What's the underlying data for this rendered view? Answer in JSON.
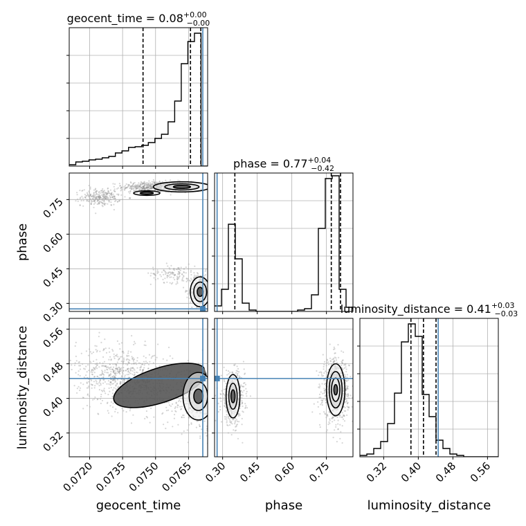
{
  "chart_data": {
    "type": "corner",
    "parameters": [
      "geocent_time",
      "phase",
      "luminosity_distance"
    ],
    "truth": {
      "geocent_time": 0.07715,
      "phase": 0.276,
      "luminosity_distance": 0.446
    },
    "axes": {
      "geocent_time": {
        "range": [
          0.07107,
          0.07737
        ],
        "ticks": [
          "0.0720",
          "0.0735",
          "0.0750",
          "0.0765"
        ],
        "tick_values": [
          0.072,
          0.0735,
          0.075,
          0.0765
        ]
      },
      "phase": {
        "range": [
          0.265,
          0.865
        ],
        "ticks": [
          "0.30",
          "0.45",
          "0.60",
          "0.75"
        ],
        "tick_values": [
          0.3,
          0.45,
          0.6,
          0.75
        ]
      },
      "luminosity_distance": {
        "range": [
          0.265,
          0.585
        ],
        "ticks": [
          "0.32",
          "0.40",
          "0.48",
          "0.56"
        ],
        "tick_values": [
          0.32,
          0.4,
          0.48,
          0.56
        ]
      }
    },
    "titles": [
      {
        "param": "geocent_time",
        "text": "geocent_time = 0.08",
        "plus": "+0.00",
        "minus": "−0.00",
        "quantiles": [
          0.07443,
          0.07659,
          0.07706
        ]
      },
      {
        "param": "phase",
        "text": "phase = 0.77",
        "plus": "+0.04",
        "minus": "−0.42",
        "quantiles": [
          0.353,
          0.771,
          0.811
        ]
      },
      {
        "param": "luminosity_distance",
        "text": "luminosity_distance = 0.41",
        "plus": "+0.03",
        "minus": "−0.03",
        "quantiles": [
          0.383,
          0.412,
          0.441
        ]
      }
    ],
    "histograms": {
      "geocent_time": [
        0.01,
        0.03,
        0.035,
        0.045,
        0.05,
        0.06,
        0.07,
        0.095,
        0.11,
        0.135,
        0.14,
        0.15,
        0.17,
        0.2,
        0.23,
        0.32,
        0.47,
        0.74,
        0.9,
        0.96,
        0.0
      ],
      "phase": [
        0.04,
        0.16,
        0.63,
        0.38,
        0.06,
        0.01,
        0.0,
        0.0,
        0.0,
        0.0,
        0.0,
        0.0,
        0.01,
        0.02,
        0.12,
        0.6,
        0.96,
        0.98,
        0.16,
        0.03
      ],
      "luminosity_distance": [
        0.01,
        0.02,
        0.06,
        0.11,
        0.24,
        0.46,
        0.83,
        0.96,
        0.87,
        0.45,
        0.29,
        0.12,
        0.06,
        0.02,
        0.01,
        0.0,
        0.0,
        0.0,
        0.0,
        0.0
      ]
    },
    "xlabel_bottom": [
      "geocent_time",
      "phase",
      "luminosity_distance"
    ],
    "ylabel_left": [
      "phase",
      "luminosity_distance"
    ],
    "grid": true,
    "colors": {
      "truth": "#4682b4",
      "contour": "#000000",
      "samples": "#8a8a8a",
      "grid": "#b0b0b0"
    }
  }
}
